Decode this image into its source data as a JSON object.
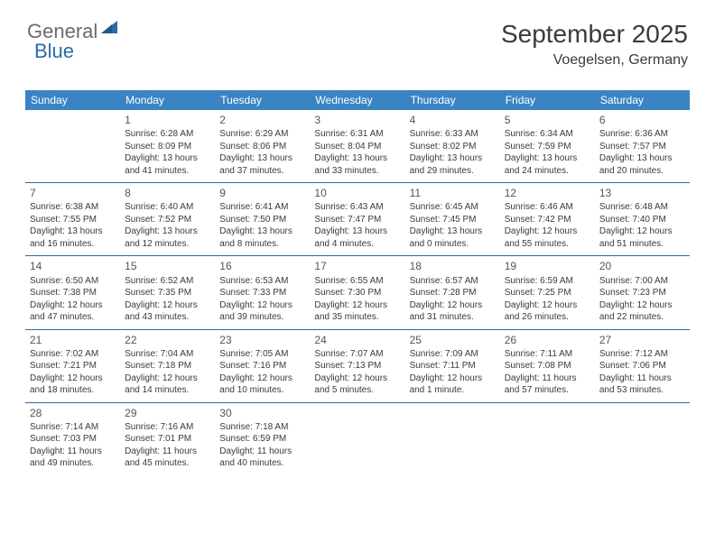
{
  "logo": {
    "text1": "General",
    "text2": "Blue"
  },
  "title": "September 2025",
  "location": "Voegelsen, Germany",
  "colors": {
    "headerBg": "#3b84c4",
    "headerText": "#ffffff",
    "divider": "#2a6ca8",
    "bodyText": "#3a3a3a",
    "logoGray": "#6b6b6b",
    "logoBlue": "#2a6ca8"
  },
  "dayHeaders": [
    "Sunday",
    "Monday",
    "Tuesday",
    "Wednesday",
    "Thursday",
    "Friday",
    "Saturday"
  ],
  "weeks": [
    [
      null,
      {
        "n": "1",
        "sunrise": "6:28 AM",
        "sunset": "8:09 PM",
        "daylight": "13 hours and 41 minutes."
      },
      {
        "n": "2",
        "sunrise": "6:29 AM",
        "sunset": "8:06 PM",
        "daylight": "13 hours and 37 minutes."
      },
      {
        "n": "3",
        "sunrise": "6:31 AM",
        "sunset": "8:04 PM",
        "daylight": "13 hours and 33 minutes."
      },
      {
        "n": "4",
        "sunrise": "6:33 AM",
        "sunset": "8:02 PM",
        "daylight": "13 hours and 29 minutes."
      },
      {
        "n": "5",
        "sunrise": "6:34 AM",
        "sunset": "7:59 PM",
        "daylight": "13 hours and 24 minutes."
      },
      {
        "n": "6",
        "sunrise": "6:36 AM",
        "sunset": "7:57 PM",
        "daylight": "13 hours and 20 minutes."
      }
    ],
    [
      {
        "n": "7",
        "sunrise": "6:38 AM",
        "sunset": "7:55 PM",
        "daylight": "13 hours and 16 minutes."
      },
      {
        "n": "8",
        "sunrise": "6:40 AM",
        "sunset": "7:52 PM",
        "daylight": "13 hours and 12 minutes."
      },
      {
        "n": "9",
        "sunrise": "6:41 AM",
        "sunset": "7:50 PM",
        "daylight": "13 hours and 8 minutes."
      },
      {
        "n": "10",
        "sunrise": "6:43 AM",
        "sunset": "7:47 PM",
        "daylight": "13 hours and 4 minutes."
      },
      {
        "n": "11",
        "sunrise": "6:45 AM",
        "sunset": "7:45 PM",
        "daylight": "13 hours and 0 minutes."
      },
      {
        "n": "12",
        "sunrise": "6:46 AM",
        "sunset": "7:42 PM",
        "daylight": "12 hours and 55 minutes."
      },
      {
        "n": "13",
        "sunrise": "6:48 AM",
        "sunset": "7:40 PM",
        "daylight": "12 hours and 51 minutes."
      }
    ],
    [
      {
        "n": "14",
        "sunrise": "6:50 AM",
        "sunset": "7:38 PM",
        "daylight": "12 hours and 47 minutes."
      },
      {
        "n": "15",
        "sunrise": "6:52 AM",
        "sunset": "7:35 PM",
        "daylight": "12 hours and 43 minutes."
      },
      {
        "n": "16",
        "sunrise": "6:53 AM",
        "sunset": "7:33 PM",
        "daylight": "12 hours and 39 minutes."
      },
      {
        "n": "17",
        "sunrise": "6:55 AM",
        "sunset": "7:30 PM",
        "daylight": "12 hours and 35 minutes."
      },
      {
        "n": "18",
        "sunrise": "6:57 AM",
        "sunset": "7:28 PM",
        "daylight": "12 hours and 31 minutes."
      },
      {
        "n": "19",
        "sunrise": "6:59 AM",
        "sunset": "7:25 PM",
        "daylight": "12 hours and 26 minutes."
      },
      {
        "n": "20",
        "sunrise": "7:00 AM",
        "sunset": "7:23 PM",
        "daylight": "12 hours and 22 minutes."
      }
    ],
    [
      {
        "n": "21",
        "sunrise": "7:02 AM",
        "sunset": "7:21 PM",
        "daylight": "12 hours and 18 minutes."
      },
      {
        "n": "22",
        "sunrise": "7:04 AM",
        "sunset": "7:18 PM",
        "daylight": "12 hours and 14 minutes."
      },
      {
        "n": "23",
        "sunrise": "7:05 AM",
        "sunset": "7:16 PM",
        "daylight": "12 hours and 10 minutes."
      },
      {
        "n": "24",
        "sunrise": "7:07 AM",
        "sunset": "7:13 PM",
        "daylight": "12 hours and 5 minutes."
      },
      {
        "n": "25",
        "sunrise": "7:09 AM",
        "sunset": "7:11 PM",
        "daylight": "12 hours and 1 minute."
      },
      {
        "n": "26",
        "sunrise": "7:11 AM",
        "sunset": "7:08 PM",
        "daylight": "11 hours and 57 minutes."
      },
      {
        "n": "27",
        "sunrise": "7:12 AM",
        "sunset": "7:06 PM",
        "daylight": "11 hours and 53 minutes."
      }
    ],
    [
      {
        "n": "28",
        "sunrise": "7:14 AM",
        "sunset": "7:03 PM",
        "daylight": "11 hours and 49 minutes."
      },
      {
        "n": "29",
        "sunrise": "7:16 AM",
        "sunset": "7:01 PM",
        "daylight": "11 hours and 45 minutes."
      },
      {
        "n": "30",
        "sunrise": "7:18 AM",
        "sunset": "6:59 PM",
        "daylight": "11 hours and 40 minutes."
      },
      null,
      null,
      null,
      null
    ]
  ]
}
